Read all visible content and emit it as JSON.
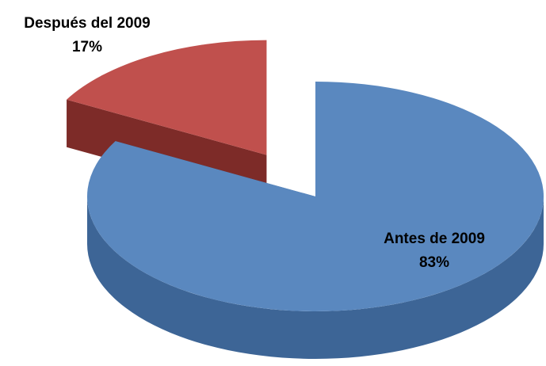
{
  "chart_data": {
    "type": "pie",
    "categories": [
      "Antes de 2009",
      "Después del 2009"
    ],
    "values": [
      83,
      17
    ],
    "value_labels": [
      "83%",
      "17%"
    ],
    "colors": [
      "#5a88bf",
      "#c0504d"
    ],
    "side_colors": [
      "#3d6596",
      "#7d2b28"
    ],
    "exploded": [
      false,
      true
    ]
  }
}
